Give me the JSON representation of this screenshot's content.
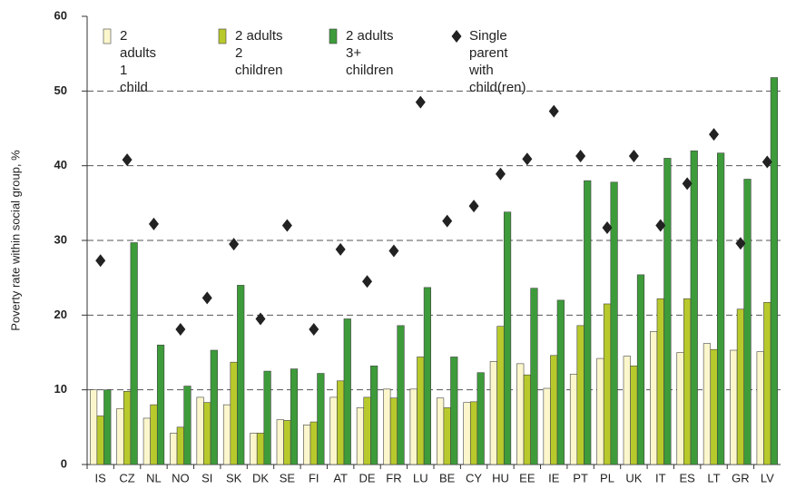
{
  "chart_data": {
    "type": "bar",
    "y_label": "Poverty rate within social group, %",
    "categories": [
      "IS",
      "CZ",
      "NL",
      "NO",
      "SI",
      "SK",
      "DK",
      "SE",
      "FI",
      "AT",
      "DE",
      "FR",
      "LU",
      "BE",
      "CY",
      "HU",
      "EE",
      "IE",
      "PT",
      "PL",
      "UK",
      "IT",
      "ES",
      "LT",
      "GR",
      "LV"
    ],
    "series": [
      {
        "name": "2 adults\n1 child",
        "type": "bar",
        "color": "#fbf6cc",
        "values": [
          10,
          7.5,
          6.2,
          4.2,
          9,
          8,
          4.2,
          6,
          5.3,
          9,
          7.6,
          10.1,
          10.1,
          8.9,
          8.3,
          13.8,
          13.5,
          10.2,
          12.1,
          14.2,
          14.5,
          17.8,
          15,
          16.2,
          15.3,
          15.1
        ]
      },
      {
        "name": "2 adults\n2 children",
        "type": "bar",
        "color": "#b8c92c",
        "values": [
          6.5,
          9.8,
          8,
          5,
          8.3,
          13.7,
          4.2,
          5.9,
          5.7,
          11.2,
          9,
          8.9,
          14.4,
          7.6,
          8.4,
          18.5,
          12,
          14.6,
          18.6,
          21.5,
          13.2,
          22.2,
          22.2,
          15.4,
          20.8,
          21.7
        ]
      },
      {
        "name": "2 adults\n3+ children",
        "type": "bar",
        "color": "#3d9b3a",
        "values": [
          10,
          29.7,
          16,
          10.5,
          15.3,
          24,
          12.5,
          12.8,
          12.2,
          19.5,
          13.2,
          18.6,
          23.7,
          14.4,
          12.3,
          33.8,
          23.6,
          22,
          38,
          37.8,
          25.4,
          41,
          42,
          41.7,
          38.2,
          51.8
        ]
      },
      {
        "name": "Single parent\nwith child(ren)",
        "type": "diamond",
        "color": "#222222",
        "values": [
          27.3,
          40.8,
          32.2,
          18.1,
          22.3,
          29.5,
          19.5,
          32,
          18.1,
          28.8,
          24.5,
          28.6,
          48.5,
          32.6,
          34.6,
          38.9,
          40.9,
          47.3,
          41.3,
          31.7,
          41.3,
          32,
          37.6,
          44.2,
          29.6,
          40.5
        ]
      }
    ],
    "ylim": [
      0,
      60
    ],
    "yticks": [
      0,
      10,
      20,
      30,
      40,
      50,
      60
    ],
    "grid": true
  }
}
